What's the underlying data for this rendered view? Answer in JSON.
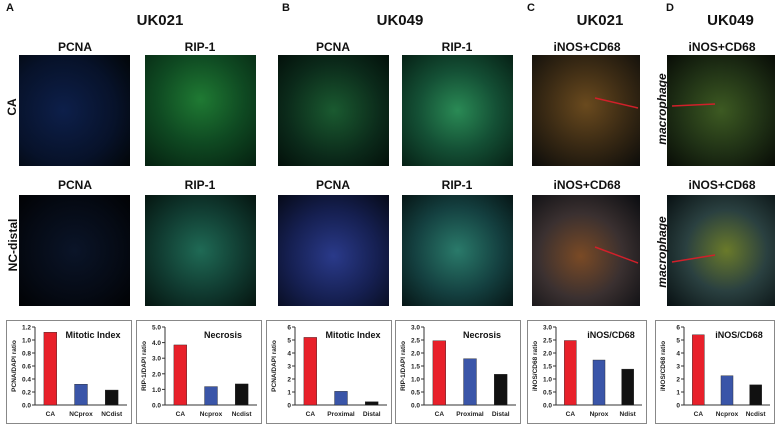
{
  "panels": [
    {
      "letter": "A",
      "sample": "UK021",
      "stains": [
        "PCNA",
        "RIP-1"
      ],
      "stains_row2": [
        "PCNA",
        "RIP-1"
      ]
    },
    {
      "letter": "B",
      "sample": "UK049",
      "stains": [
        "PCNA",
        "RIP-1"
      ],
      "stains_row2": [
        "PCNA",
        "RIP-1"
      ]
    },
    {
      "letter": "C",
      "sample": "UK021",
      "stains": [
        "iNOS+CD68"
      ],
      "stains_row2": [
        "iNOS+CD68"
      ]
    },
    {
      "letter": "D",
      "sample": "UK049",
      "stains": [
        "iNOS+CD68"
      ],
      "stains_row2": [
        "iNOS+CD68"
      ]
    }
  ],
  "row_labels": [
    "CA",
    "NC-distal"
  ],
  "annotation": "macrophage",
  "colors": {
    "CA": "#e8202a",
    "prox": "#3a55a8",
    "dist": "#111111"
  },
  "chart_data": [
    {
      "type": "bar",
      "title": "Mitotic Index",
      "ylabel": "PCNA/DAPI ratio",
      "categories": [
        "CA",
        "NCprox",
        "NCdist"
      ],
      "values": [
        1.12,
        0.32,
        0.23
      ],
      "ylim": [
        0,
        1.2
      ],
      "ticks": [
        "0.0",
        "0.2",
        "0.4",
        "0.6",
        "0.8",
        "1.0",
        "1.2"
      ],
      "grid": false
    },
    {
      "type": "bar",
      "title": "Necrosis",
      "ylabel": "RIP-1/DAPI ratio",
      "categories": [
        "CA",
        "Ncprox",
        "Ncdist"
      ],
      "values": [
        3.85,
        1.18,
        1.35
      ],
      "ylim": [
        0,
        5
      ],
      "ticks": [
        "0.0",
        "1.0",
        "2.0",
        "3.0",
        "4.0",
        "5.0"
      ],
      "grid": false
    },
    {
      "type": "bar",
      "title": "Mitotic Index",
      "ylabel": "PCNA/DAPI ratio",
      "categories": [
        "CA",
        "Proximal",
        "Distal"
      ],
      "values": [
        5.2,
        1.05,
        0.25
      ],
      "ylim": [
        0,
        6
      ],
      "ticks": [
        "0",
        "1",
        "2",
        "3",
        "4",
        "5",
        "6"
      ],
      "grid": false
    },
    {
      "type": "bar",
      "title": "Necrosis",
      "ylabel": "RIP-1/DAPI ratio",
      "categories": [
        "CA",
        "Proximal",
        "Distal"
      ],
      "values": [
        2.47,
        1.78,
        1.18
      ],
      "ylim": [
        0,
        3
      ],
      "ticks": [
        "0.0",
        "0.5",
        "1.0",
        "1.5",
        "2.0",
        "2.5",
        "3.0"
      ],
      "grid": false
    },
    {
      "type": "bar",
      "title": "iNOS/CD68",
      "ylabel": "iNOS/CD68 ratio",
      "categories": [
        "CA",
        "Nprox",
        "Ndist"
      ],
      "values": [
        2.48,
        1.73,
        1.38
      ],
      "ylim": [
        0,
        3
      ],
      "ticks": [
        "0.0",
        "0.5",
        "1.0",
        "1.5",
        "2.0",
        "2.5",
        "3.0"
      ],
      "grid": false
    },
    {
      "type": "bar",
      "title": "iNOS/CD68",
      "ylabel": "iNOS/CD68 ratio",
      "categories": [
        "CA",
        "Ncprox",
        "Ncdist"
      ],
      "values": [
        5.4,
        2.25,
        1.55
      ],
      "ylim": [
        0,
        6
      ],
      "ticks": [
        "0",
        "1",
        "2",
        "3",
        "4",
        "5",
        "6"
      ],
      "grid": false
    }
  ]
}
